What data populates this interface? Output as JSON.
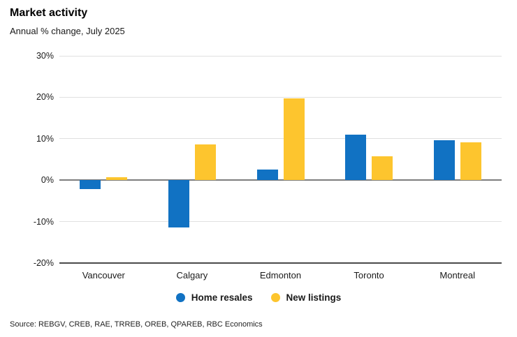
{
  "header": {
    "title": "Market activity",
    "subtitle": "Annual % change, July 2025"
  },
  "chart_data": {
    "type": "bar",
    "title": "Market activity",
    "subtitle": "Annual % change, July 2025",
    "categories": [
      "Vancouver",
      "Calgary",
      "Edmonton",
      "Toronto",
      "Montreal"
    ],
    "series": [
      {
        "name": "Home resales",
        "color": "#1172C3",
        "values": [
          -2.1,
          -11.5,
          2.6,
          11.0,
          9.7
        ]
      },
      {
        "name": "New listings",
        "color": "#FDC52E",
        "values": [
          0.7,
          8.6,
          19.8,
          5.7,
          9.2
        ]
      }
    ],
    "xlabel": "",
    "ylabel": "",
    "ylim": [
      -20,
      30
    ],
    "yticks": [
      30,
      20,
      10,
      0,
      -10,
      -20
    ],
    "ytick_suffix": "%",
    "grid": true,
    "legend_position": "bottom"
  },
  "source": "Source: REBGV, CREB, RAE, TRREB, OREB, QPAREB, RBC Economics"
}
